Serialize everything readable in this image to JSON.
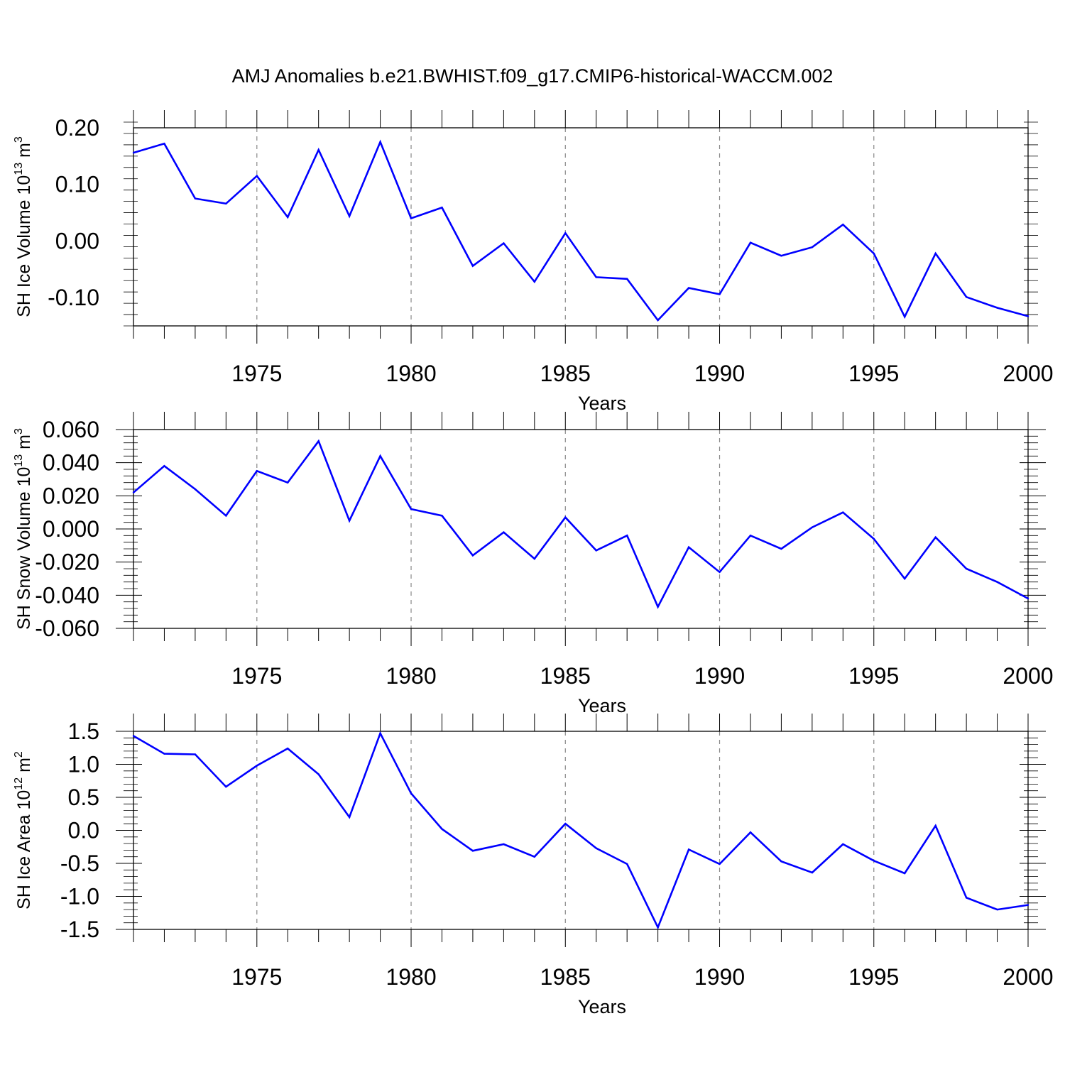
{
  "title": "AMJ Anomalies b.e21.BWHIST.f09_g17.CMIP6-historical-WACCM.002",
  "line_color": "#0000ff",
  "chart_data": [
    {
      "type": "line",
      "ylabel": {
        "text": "SH Ice Volume 10",
        "sup": "13",
        "unit": " m",
        "unit_sup": "3"
      },
      "xlabel": "Years",
      "xlim": [
        1971,
        2000
      ],
      "ylim": [
        -0.15,
        0.2
      ],
      "yticks": [
        -0.1,
        0.0,
        0.1,
        0.2
      ],
      "ytick_labels": [
        "-0.10",
        "0.00",
        "0.10",
        "0.20"
      ],
      "xticks": [
        1975,
        1980,
        1985,
        1990,
        1995,
        2000
      ],
      "xtick_labels": [
        "1975",
        "1980",
        "1985",
        "1990",
        "1995",
        "2000"
      ],
      "grid_x": [
        1975,
        1980,
        1985,
        1990,
        1995
      ],
      "x": [
        1971,
        1972,
        1973,
        1974,
        1975,
        1976,
        1977,
        1978,
        1979,
        1980,
        1981,
        1982,
        1983,
        1984,
        1985,
        1986,
        1987,
        1988,
        1989,
        1990,
        1991,
        1992,
        1993,
        1994,
        1995,
        1996,
        1997,
        1998,
        1999,
        2000
      ],
      "values": [
        0.156,
        0.172,
        0.075,
        0.066,
        0.115,
        0.042,
        0.161,
        0.044,
        0.175,
        0.04,
        0.059,
        -0.044,
        -0.004,
        -0.072,
        0.014,
        -0.064,
        -0.067,
        -0.14,
        -0.083,
        -0.094,
        -0.003,
        -0.026,
        -0.011,
        0.029,
        -0.022,
        -0.134,
        -0.022,
        -0.099,
        -0.118,
        -0.133
      ]
    },
    {
      "type": "line",
      "ylabel": {
        "text": "SH Snow Volume 10",
        "sup": "13",
        "unit": " m",
        "unit_sup": "3"
      },
      "xlabel": "Years",
      "xlim": [
        1971,
        2000
      ],
      "ylim": [
        -0.06,
        0.06
      ],
      "yticks": [
        -0.06,
        -0.04,
        -0.02,
        0.0,
        0.02,
        0.04,
        0.06
      ],
      "ytick_labels": [
        "-0.060",
        "-0.040",
        "-0.020",
        "0.000",
        "0.020",
        "0.040",
        "0.060"
      ],
      "xticks": [
        1975,
        1980,
        1985,
        1990,
        1995,
        2000
      ],
      "xtick_labels": [
        "1975",
        "1980",
        "1985",
        "1990",
        "1995",
        "2000"
      ],
      "grid_x": [
        1975,
        1980,
        1985,
        1990,
        1995
      ],
      "x": [
        1971,
        1972,
        1973,
        1974,
        1975,
        1976,
        1977,
        1978,
        1979,
        1980,
        1981,
        1982,
        1983,
        1984,
        1985,
        1986,
        1987,
        1988,
        1989,
        1990,
        1991,
        1992,
        1993,
        1994,
        1995,
        1996,
        1997,
        1998,
        1999,
        2000
      ],
      "values": [
        0.022,
        0.038,
        0.024,
        0.008,
        0.035,
        0.028,
        0.053,
        0.005,
        0.044,
        0.012,
        0.008,
        -0.016,
        -0.002,
        -0.018,
        0.007,
        -0.013,
        -0.004,
        -0.047,
        -0.011,
        -0.026,
        -0.004,
        -0.012,
        0.001,
        0.01,
        -0.006,
        -0.03,
        -0.005,
        -0.024,
        -0.032,
        -0.042
      ]
    },
    {
      "type": "line",
      "ylabel": {
        "text": "SH Ice Area 10",
        "sup": "12",
        "unit": " m",
        "unit_sup": "2"
      },
      "xlabel": "Years",
      "xlim": [
        1971,
        2000
      ],
      "ylim": [
        -1.5,
        1.5
      ],
      "yticks": [
        -1.5,
        -1.0,
        -0.5,
        0.0,
        0.5,
        1.0,
        1.5
      ],
      "ytick_labels": [
        "-1.5",
        "-1.0",
        "-0.5",
        "0.0",
        "0.5",
        "1.0",
        "1.5"
      ],
      "xticks": [
        1975,
        1980,
        1985,
        1990,
        1995,
        2000
      ],
      "xtick_labels": [
        "1975",
        "1980",
        "1985",
        "1990",
        "1995",
        "2000"
      ],
      "grid_x": [
        1975,
        1980,
        1985,
        1990,
        1995
      ],
      "x": [
        1971,
        1972,
        1973,
        1974,
        1975,
        1976,
        1977,
        1978,
        1979,
        1980,
        1981,
        1982,
        1983,
        1984,
        1985,
        1986,
        1987,
        1988,
        1989,
        1990,
        1991,
        1992,
        1993,
        1994,
        1995,
        1996,
        1997,
        1998,
        1999,
        2000
      ],
      "values": [
        1.43,
        1.16,
        1.15,
        0.66,
        0.98,
        1.24,
        0.85,
        0.2,
        1.47,
        0.56,
        0.02,
        -0.31,
        -0.21,
        -0.4,
        0.1,
        -0.27,
        -0.51,
        -1.47,
        -0.29,
        -0.51,
        -0.03,
        -0.47,
        -0.64,
        -0.21,
        -0.46,
        -0.65,
        0.07,
        -1.02,
        -1.2,
        -1.13
      ]
    }
  ]
}
